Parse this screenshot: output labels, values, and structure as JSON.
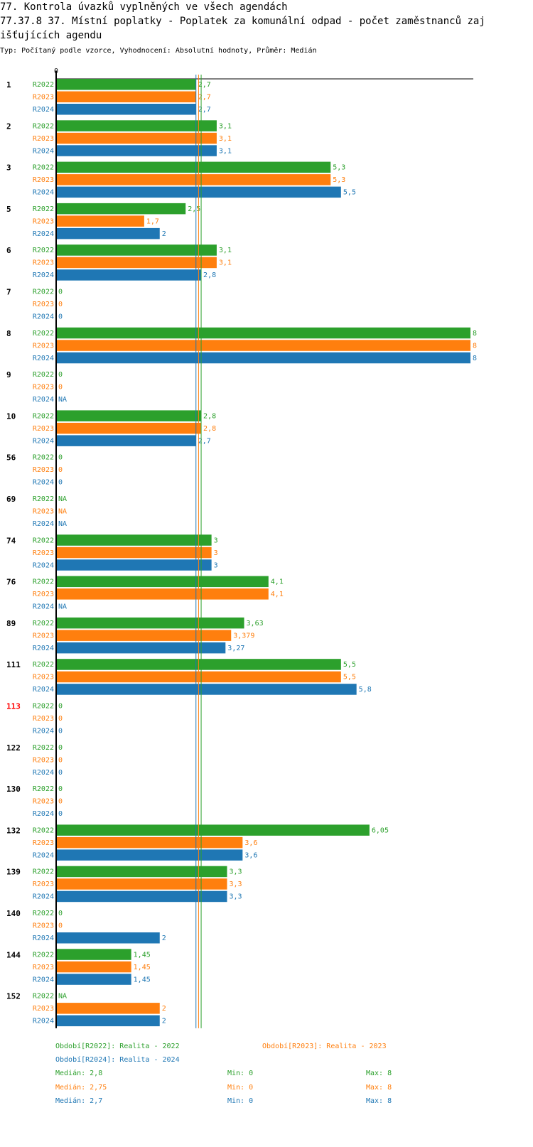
{
  "header": {
    "title_line1": "77. Kontrola úvazků vyplněných ve všech agendách",
    "title_line2a": "77.37.8 37. Místní poplatky - Poplatek za komunální odpad - počet zaměstnanců zaj",
    "title_line2b": "išťujících agendu",
    "subtitle": "Typ: Počítaný podle vzorce, Vyhodnocení: Absolutní hodnoty, Průměr: Medián"
  },
  "colors": {
    "R2022": "#2ca02c",
    "R2023": "#ff7f0e",
    "R2024": "#1f77b4",
    "highlight": "#ff0000"
  },
  "chart_data": {
    "type": "bar",
    "orientation": "horizontal",
    "axis_zero_label": "0",
    "xlim": [
      0,
      8
    ],
    "highlight_category": "113",
    "categories": [
      "1",
      "2",
      "3",
      "5",
      "6",
      "7",
      "8",
      "9",
      "10",
      "56",
      "69",
      "74",
      "76",
      "89",
      "111",
      "113",
      "122",
      "130",
      "132",
      "139",
      "140",
      "144",
      "152"
    ],
    "series": [
      {
        "name": "R2022",
        "values": [
          2.7,
          3.1,
          5.3,
          2.5,
          3.1,
          0,
          8,
          0,
          2.8,
          0,
          null,
          3,
          4.1,
          3.63,
          5.5,
          0,
          0,
          0,
          6.05,
          3.3,
          0,
          1.45,
          null
        ],
        "labels": [
          "2,7",
          "3,1",
          "5,3",
          "2,5",
          "3,1",
          "0",
          "8",
          "0",
          "2,8",
          "0",
          "NA",
          "3",
          "4,1",
          "3,63",
          "5,5",
          "0",
          "0",
          "0",
          "6,05",
          "3,3",
          "0",
          "1,45",
          "NA"
        ]
      },
      {
        "name": "R2023",
        "values": [
          2.7,
          3.1,
          5.3,
          1.7,
          3.1,
          0,
          8,
          0,
          2.8,
          0,
          null,
          3,
          4.1,
          3.379,
          5.5,
          0,
          0,
          0,
          3.6,
          3.3,
          0,
          1.45,
          2
        ],
        "labels": [
          "2,7",
          "3,1",
          "5,3",
          "1,7",
          "3,1",
          "0",
          "8",
          "0",
          "2,8",
          "0",
          "NA",
          "3",
          "4,1",
          "3,379",
          "5,5",
          "0",
          "0",
          "0",
          "3,6",
          "3,3",
          "0",
          "1,45",
          "2"
        ]
      },
      {
        "name": "R2024",
        "values": [
          2.7,
          3.1,
          5.5,
          2,
          2.8,
          0,
          8,
          null,
          2.7,
          0,
          null,
          3,
          null,
          3.27,
          5.8,
          0,
          0,
          0,
          3.6,
          3.3,
          2,
          1.45,
          2
        ],
        "labels": [
          "2,7",
          "3,1",
          "5,5",
          "2",
          "2,8",
          "0",
          "8",
          "NA",
          "2,7",
          "0",
          "NA",
          "3",
          "NA",
          "3,27",
          "5,8",
          "0",
          "0",
          "0",
          "3,6",
          "3,3",
          "2",
          "1,45",
          "2"
        ]
      }
    ],
    "medians": {
      "R2022": 2.8,
      "R2023": 2.75,
      "R2024": 2.7
    }
  },
  "legend": {
    "period_2022": "Období[R2022]: Realita - 2022",
    "period_2023": "Období[R2023]: Realita - 2023",
    "period_2024": "Období[R2024]: Realita - 2024",
    "stats": [
      {
        "median": "Medián: 2,8",
        "min": "Min: 0",
        "max": "Max: 8"
      },
      {
        "median": "Medián: 2,75",
        "min": "Min: 0",
        "max": "Max: 8"
      },
      {
        "median": "Medián: 2,7",
        "min": "Min: 0",
        "max": "Max: 8"
      }
    ]
  }
}
